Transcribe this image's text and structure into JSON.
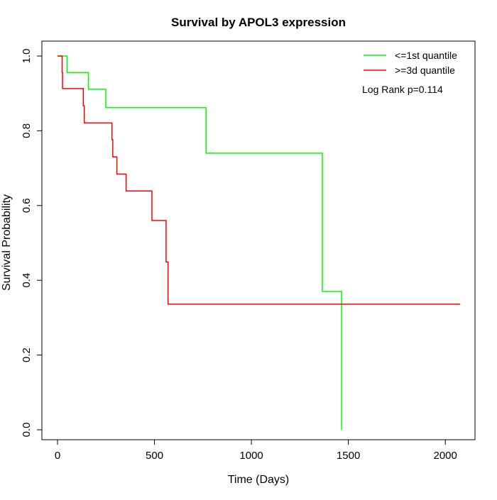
{
  "chart_data": {
    "type": "line",
    "title": "Survival by APOL3 expression",
    "xlabel": "Time (Days)",
    "ylabel": "Survival Probability",
    "xlim": [
      0,
      2076
    ],
    "ylim": [
      0,
      1
    ],
    "xticks": [
      0,
      500,
      1000,
      1500,
      2000
    ],
    "yticks": [
      0.0,
      0.2,
      0.4,
      0.6,
      0.8,
      1.0
    ],
    "ytick_labels": [
      "0.0",
      "0.2",
      "0.4",
      "0.6",
      "0.8",
      "1.0"
    ],
    "grid": false,
    "legend_position": "top-right",
    "annotation": "Log Rank p=0.114",
    "series": [
      {
        "name": "<=1st quantile",
        "color": "#00ff00",
        "step_x": [
          0,
          49,
          159,
          249,
          766,
          1366,
          1465
        ],
        "step_y": [
          1.0,
          0.956,
          0.911,
          0.862,
          0.74,
          0.37,
          0.0
        ],
        "end_x": 1465
      },
      {
        "name": ">=3d quantile",
        "color": "#ff0000",
        "step_x": [
          0,
          24,
          26,
          133,
          138,
          281,
          285,
          306,
          354,
          487,
          560,
          570
        ],
        "step_y": [
          1.0,
          0.956,
          0.913,
          0.867,
          0.821,
          0.776,
          0.73,
          0.684,
          0.639,
          0.56,
          0.449,
          0.336
        ],
        "end_x": 2076
      }
    ]
  }
}
